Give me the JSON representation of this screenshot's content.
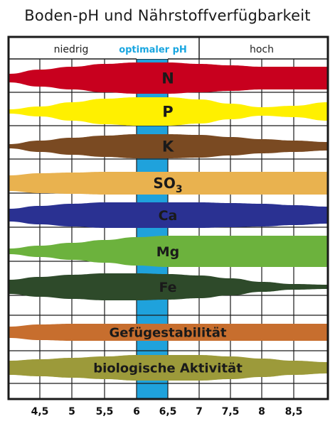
{
  "title": "Boden-pH und Nährstoffverfügbarkeit",
  "header": {
    "low": "niedrig",
    "optimal": "optimaler pH",
    "high": "hoch"
  },
  "ph_ticks": [
    "4,5",
    "5",
    "5,5",
    "6",
    "6,5",
    "7",
    "7,5",
    "8",
    "8,5"
  ],
  "optimal_range": [
    6.0,
    6.5
  ],
  "bands": [
    {
      "label": "N",
      "sub": "",
      "color": "#c8001e"
    },
    {
      "label": "P",
      "sub": "",
      "color": "#fff000"
    },
    {
      "label": "K",
      "sub": "",
      "color": "#7a4a22"
    },
    {
      "label": "SO",
      "sub": "3",
      "color": "#e9b24f"
    },
    {
      "label": "Ca",
      "sub": "",
      "color": "#2a3192"
    },
    {
      "label": "Mg",
      "sub": "",
      "color": "#6cb23d"
    },
    {
      "label": "Fe",
      "sub": "",
      "color": "#2e4a2a"
    },
    {
      "label": "Gefügestabilität",
      "sub": "",
      "color": "#c76e2e"
    },
    {
      "label": "biologische Aktivität",
      "sub": "",
      "color": "#9c9a3a"
    }
  ],
  "colors": {
    "optimal_stripe": "#1fa2dc",
    "frame": "#1a1a1a",
    "grid": "#1a1a1a"
  }
}
